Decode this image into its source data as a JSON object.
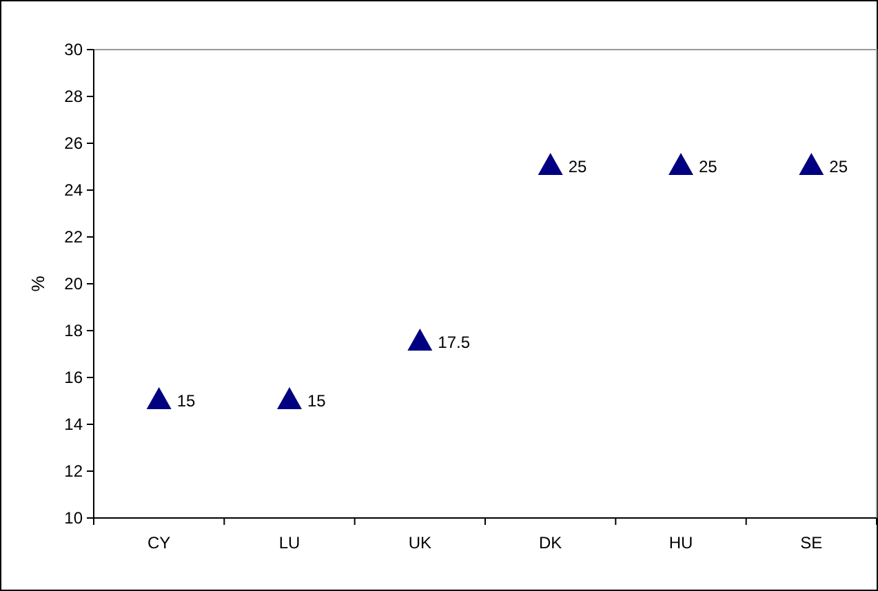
{
  "chart_data": {
    "type": "scatter",
    "ylabel": "%",
    "categories": [
      "CY",
      "LU",
      "UK",
      "DK",
      "HU",
      "SE"
    ],
    "values": [
      15,
      15,
      17.5,
      25,
      25,
      25
    ],
    "color": "#000080",
    "marker": "triangle",
    "data_labels": true,
    "ylim": [
      10,
      30
    ],
    "yticks": [
      10,
      12,
      14,
      16,
      18,
      20,
      22,
      24,
      26,
      28,
      30
    ],
    "grid": false
  }
}
